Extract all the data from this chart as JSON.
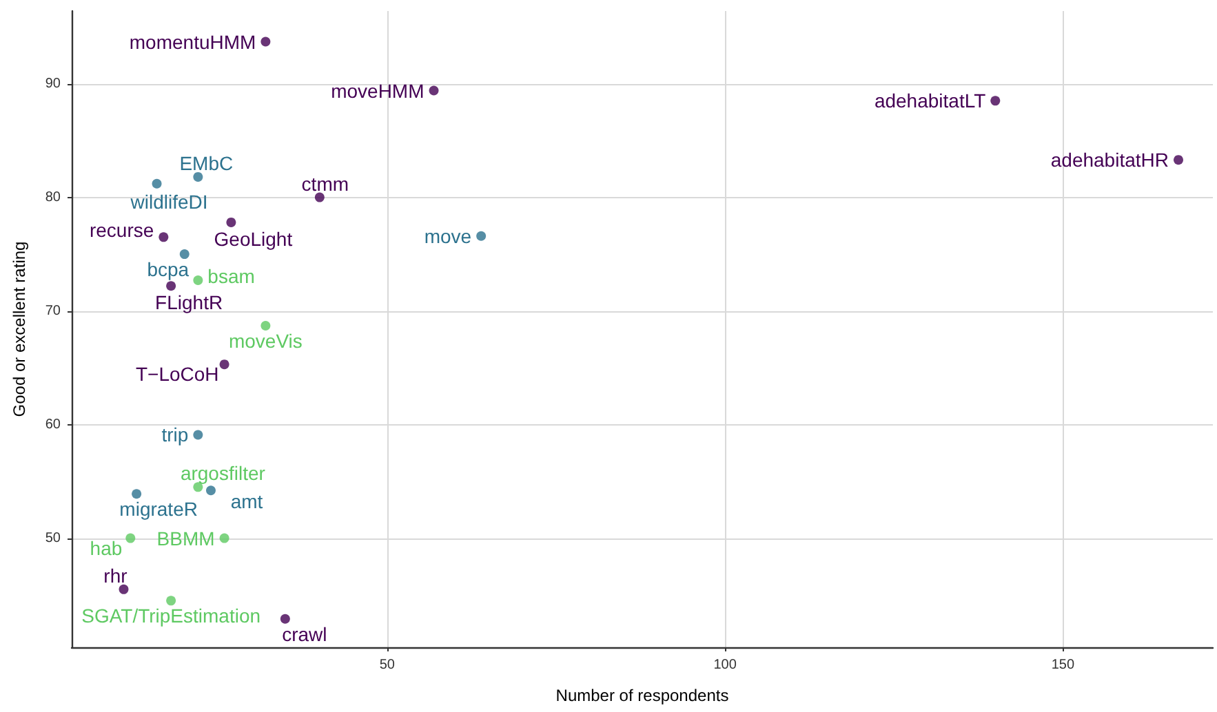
{
  "chart_data": {
    "type": "scatter",
    "xlabel": "Number of respondents",
    "ylabel": "Good or excellent rating",
    "xlim": [
      3.3,
      172.2
    ],
    "xticks": [
      50,
      100,
      150
    ],
    "ylim": [
      40.4,
      96.4
    ],
    "yticks": [
      50,
      60,
      70,
      80,
      90
    ],
    "grid": true,
    "marker": "circle",
    "series": [
      {
        "color": "#440154",
        "x": [
          32.0,
          56.9,
          140,
          167.1,
          40,
          26.9,
          16.9,
          18,
          25.9,
          11,
          34.9
        ],
        "values": [
          93.7,
          89.4,
          88.5,
          83.3,
          80,
          77.8,
          76.5,
          72.2,
          65.3,
          45.5,
          42.9
        ]
      },
      {
        "color": "#2c728e",
        "x": [
          22.0,
          15.9,
          63.9,
          20,
          22,
          23.9,
          12.9
        ],
        "values": [
          81.8,
          81.2,
          76.6,
          75,
          59.1,
          54.2,
          53.9
        ]
      },
      {
        "color": "#5ec962",
        "x": [
          22,
          32,
          22,
          12.0,
          25.9,
          18
        ],
        "values": [
          72.7,
          68.7,
          54.5,
          50,
          50,
          44.5
        ]
      }
    ],
    "annotations": [
      {
        "text": "momentuHMM",
        "x": 32.0,
        "y": 93.7
      },
      {
        "text": "moveHMM",
        "x": 56.9,
        "y": 89.4
      },
      {
        "text": "adehabitatLT",
        "x": 140,
        "y": 88.5
      },
      {
        "text": "adehabitatHR",
        "x": 167.1,
        "y": 83.3
      },
      {
        "text": "EMbC",
        "x": 22.0,
        "y": 81.8
      },
      {
        "text": "wildlifeDI",
        "x": 15.9,
        "y": 81.2
      },
      {
        "text": "ctmm",
        "x": 40,
        "y": 80
      },
      {
        "text": "GeoLight",
        "x": 26.9,
        "y": 77.8
      },
      {
        "text": "recurse",
        "x": 16.9,
        "y": 76.5
      },
      {
        "text": "move",
        "x": 63.9,
        "y": 76.6
      },
      {
        "text": "bcpa",
        "x": 20,
        "y": 75
      },
      {
        "text": "bsam",
        "x": 22,
        "y": 72.7
      },
      {
        "text": "FLightR",
        "x": 18,
        "y": 72.2
      },
      {
        "text": "moveVis",
        "x": 32,
        "y": 68.7
      },
      {
        "text": "T−LoCoH",
        "x": 25.9,
        "y": 65.3
      },
      {
        "text": "trip",
        "x": 22,
        "y": 59.1
      },
      {
        "text": "argosfilter",
        "x": 22,
        "y": 54.5
      },
      {
        "text": "amt",
        "x": 23.9,
        "y": 54.2
      },
      {
        "text": "migrateR",
        "x": 12.9,
        "y": 53.9
      },
      {
        "text": "hab",
        "x": 12.0,
        "y": 50
      },
      {
        "text": "BBMM",
        "x": 25.9,
        "y": 50
      },
      {
        "text": "rhr",
        "x": 11,
        "y": 45.5
      },
      {
        "text": "SGAT/TripEstimation",
        "x": 18,
        "y": 44.5
      },
      {
        "text": "crawl",
        "x": 34.9,
        "y": 42.9
      }
    ]
  }
}
